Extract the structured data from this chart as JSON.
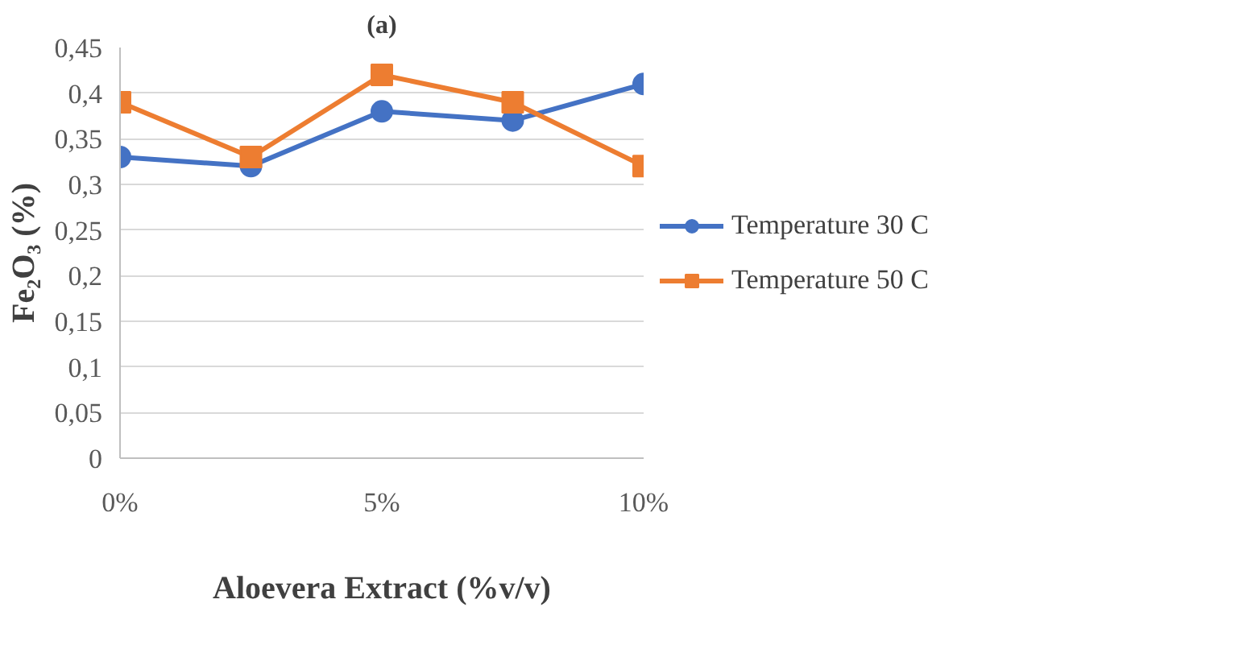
{
  "chart_data": {
    "type": "line",
    "title": "(a)",
    "xlabel": "Aloevera Extract (%v/v)",
    "ylabel": "Fe₂O₃ (%)",
    "x": [
      0,
      2.5,
      5,
      7.5,
      10
    ],
    "xlim": [
      0,
      10
    ],
    "xticks": [
      {
        "value": 0,
        "label": "0%"
      },
      {
        "value": 5,
        "label": "5%"
      },
      {
        "value": 10,
        "label": "10%"
      }
    ],
    "ylim": [
      0,
      0.45
    ],
    "yticks": [
      {
        "value": 0,
        "label": "0"
      },
      {
        "value": 0.05,
        "label": "0,05"
      },
      {
        "value": 0.1,
        "label": "0,1"
      },
      {
        "value": 0.15,
        "label": "0,15"
      },
      {
        "value": 0.2,
        "label": "0,2"
      },
      {
        "value": 0.25,
        "label": "0,25"
      },
      {
        "value": 0.3,
        "label": "0,3"
      },
      {
        "value": 0.35,
        "label": "0,35"
      },
      {
        "value": 0.4,
        "label": "0,4"
      },
      {
        "value": 0.45,
        "label": "0,45"
      }
    ],
    "grid": "y",
    "legend": "right",
    "line_style": "solid",
    "series": [
      {
        "name": "Temperature 30 C",
        "color": "#4472c4",
        "marker": "circle",
        "values": [
          0.33,
          0.32,
          0.38,
          0.37,
          0.41
        ]
      },
      {
        "name": "Temperature 50 C",
        "color": "#ed7d31",
        "marker": "square",
        "values": [
          0.39,
          0.33,
          0.42,
          0.39,
          0.32
        ]
      }
    ]
  }
}
